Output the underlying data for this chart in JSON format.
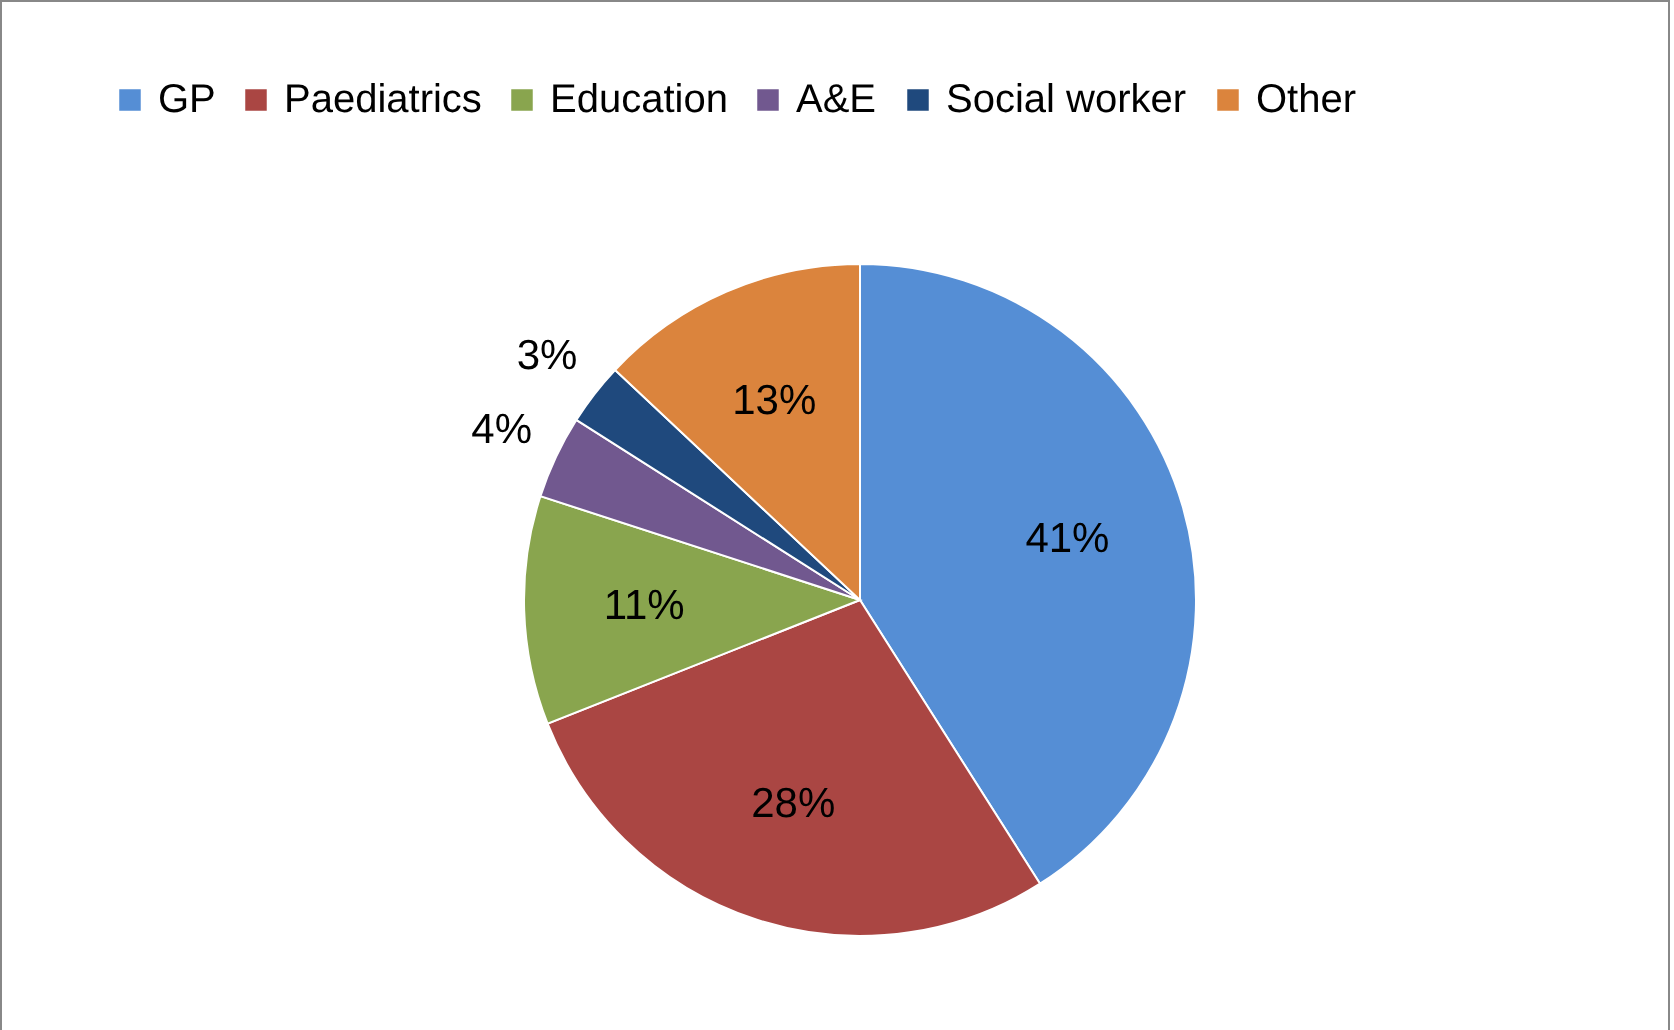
{
  "chart_data": {
    "type": "pie",
    "categories": [
      "GP",
      "Paediatrics",
      "Education",
      "A&E",
      "Social worker",
      "Other"
    ],
    "values": [
      41,
      28,
      11,
      4,
      3,
      13
    ],
    "colors": [
      "#558ed5",
      "#aa4643",
      "#89a54e",
      "#71588f",
      "#1f497d",
      "#db843d"
    ],
    "value_labels": [
      "41%",
      "28%",
      "11%",
      "4%",
      "3%",
      "13%"
    ],
    "legend": "top"
  }
}
